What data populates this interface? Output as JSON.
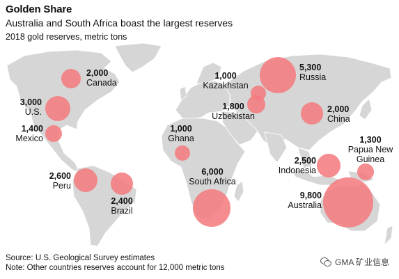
{
  "header": {
    "title": "Golden Share",
    "subtitle": "Australia and South Africa boast the largest reserves",
    "units": "2018 gold reserves, metric tons"
  },
  "colors": {
    "bubble": "#f47c7f",
    "land": "#d6d6d6"
  },
  "countries": [
    {
      "name": "Canada",
      "value": "2,000"
    },
    {
      "name": "U.S.",
      "value": "3,000"
    },
    {
      "name": "Mexico",
      "value": "1,400"
    },
    {
      "name": "Peru",
      "value": "2,600"
    },
    {
      "name": "Brazil",
      "value": "2,400"
    },
    {
      "name": "Ghana",
      "value": "1,000"
    },
    {
      "name": "South Africa",
      "value": "6,000"
    },
    {
      "name": "Kazakhstan",
      "value": "1,000"
    },
    {
      "name": "Uzbekistan",
      "value": "1,800"
    },
    {
      "name": "Russia",
      "value": "5,300"
    },
    {
      "name": "China",
      "value": "2,000"
    },
    {
      "name": "Indonesia",
      "value": "2,500"
    },
    {
      "name": "Papua New Guinea",
      "value": "1,300"
    },
    {
      "name": "Australia",
      "value": "9,800"
    }
  ],
  "footer": {
    "source": "Source: U.S. Geological Survey estimates",
    "note": "Note: Other countries reserves account for 12,000 metric tons"
  },
  "watermark": "GMA 矿业信息"
}
